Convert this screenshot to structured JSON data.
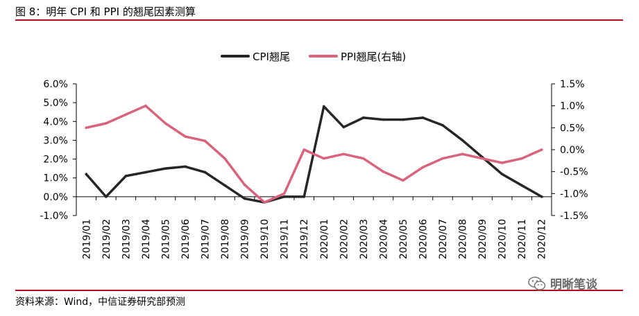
{
  "figure": {
    "title": "图 8：明年 CPI 和 PPI 的翘尾因素测算",
    "source": "资料来源：Wind，中信证券研究部预测",
    "watermark": "明晰笔谈"
  },
  "chart_data": {
    "type": "line",
    "categories": [
      "2019/01",
      "2019/02",
      "2019/03",
      "2019/04",
      "2019/05",
      "2019/06",
      "2019/07",
      "2019/08",
      "2019/09",
      "2019/10",
      "2019/11",
      "2019/12",
      "2020/01",
      "2020/02",
      "2020/03",
      "2020/04",
      "2020/05",
      "2020/06",
      "2020/07",
      "2020/08",
      "2020/09",
      "2020/10",
      "2020/11",
      "2020/12"
    ],
    "series": [
      {
        "name": "CPI翘尾",
        "axis": "left",
        "color": "#262626",
        "values": [
          1.2,
          0.0,
          1.1,
          1.3,
          1.5,
          1.6,
          1.3,
          0.6,
          -0.1,
          -0.3,
          0.0,
          0.0,
          4.8,
          3.7,
          4.2,
          4.1,
          4.1,
          4.2,
          3.8,
          3.0,
          2.1,
          1.2,
          0.6,
          0.0
        ]
      },
      {
        "name": "PPI翘尾(右轴)",
        "axis": "right",
        "color": "#d9637b",
        "values": [
          0.5,
          0.6,
          0.8,
          1.0,
          0.6,
          0.3,
          0.2,
          -0.2,
          -0.8,
          -1.2,
          -1.0,
          0.0,
          -0.2,
          -0.1,
          -0.2,
          -0.5,
          -0.7,
          -0.4,
          -0.2,
          -0.1,
          -0.2,
          -0.3,
          -0.2,
          0.0
        ]
      }
    ],
    "y_left": {
      "min": -1.0,
      "max": 6.0,
      "step": 1.0,
      "tick_labels": [
        "-1.0%",
        "0.0%",
        "1.0%",
        "2.0%",
        "3.0%",
        "4.0%",
        "5.0%",
        "6.0%"
      ]
    },
    "y_right": {
      "min": -1.5,
      "max": 1.5,
      "step": 0.5,
      "tick_labels": [
        "-1.5%",
        "-1.0%",
        "-0.5%",
        "0.0%",
        "0.5%",
        "1.0%",
        "1.5%"
      ]
    },
    "legend": {
      "placement": "top-center"
    },
    "grid": false
  }
}
